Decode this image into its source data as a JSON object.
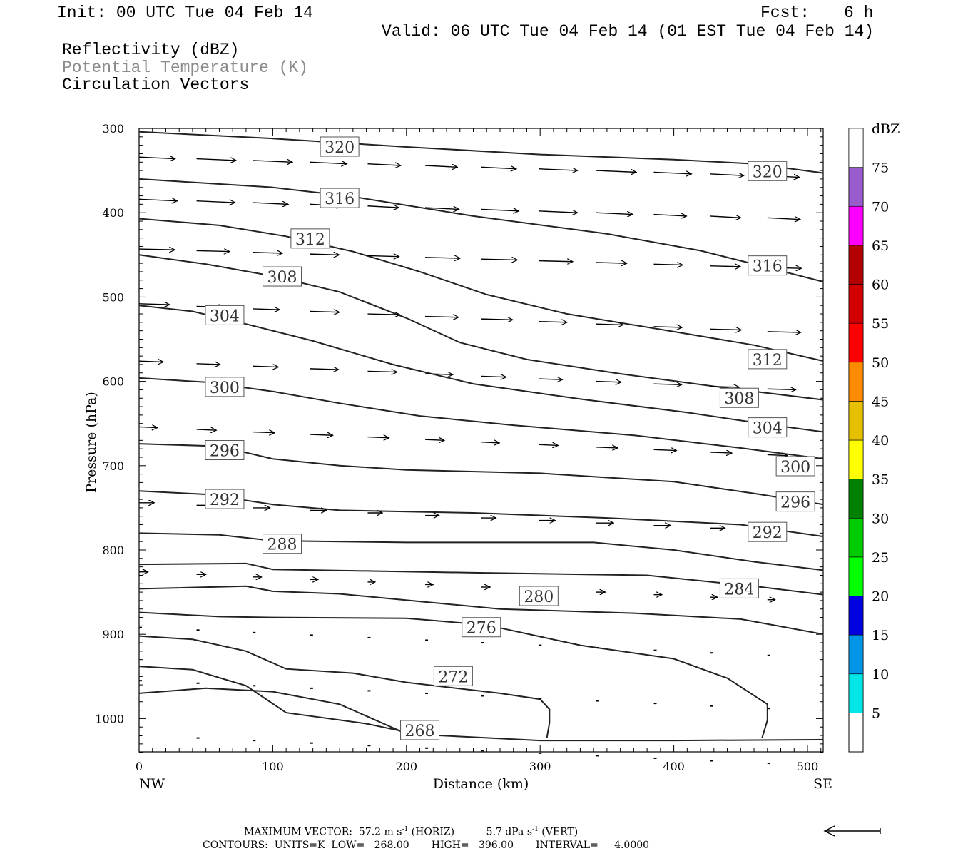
{
  "header": {
    "init": "Init: 00 UTC Tue 04 Feb 14",
    "fcst_label": "Fcst:",
    "fcst_value": "6 h",
    "valid": "Valid: 06 UTC Tue 04 Feb 14 (01 EST Tue 04 Feb 14)",
    "fields": [
      "Reflectivity (dBZ)",
      "Potential Temperature (K)",
      "Circulation Vectors"
    ]
  },
  "chart_data": {
    "type": "contour",
    "xlabel": "Distance (km)",
    "ylabel": "Pressure (hPa)",
    "xlim": [
      0,
      512
    ],
    "ylim": [
      1040,
      300
    ],
    "x_ticks": [
      0,
      100,
      200,
      300,
      400,
      500
    ],
    "y_ticks": [
      300,
      400,
      500,
      600,
      700,
      800,
      900,
      1000
    ],
    "x_end_labels": {
      "left": "NW",
      "right": "SE"
    },
    "colorbar": {
      "title": "dBZ",
      "levels": [
        5,
        10,
        15,
        20,
        25,
        30,
        35,
        40,
        45,
        50,
        55,
        60,
        65,
        70,
        75
      ],
      "colors": [
        "#00e5e5",
        "#0095e6",
        "#0000e0",
        "#00ff00",
        "#00cc00",
        "#008000",
        "#ffff00",
        "#e6bf00",
        "#ff8c00",
        "#ff0000",
        "#d20000",
        "#b30000",
        "#ff00ff",
        "#9a5ccc",
        "#ffffff"
      ]
    },
    "theta_contours": [
      {
        "level": 320,
        "points": [
          [
            0,
            304
          ],
          [
            100,
            312
          ],
          [
            200,
            322
          ],
          [
            300,
            331
          ],
          [
            400,
            337
          ],
          [
            460,
            342
          ],
          [
            512,
            353
          ]
        ]
      },
      {
        "level": 316,
        "points": [
          [
            0,
            360
          ],
          [
            100,
            370
          ],
          [
            160,
            381
          ],
          [
            250,
            404
          ],
          [
            350,
            425
          ],
          [
            420,
            445
          ],
          [
            470,
            465
          ],
          [
            512,
            482
          ]
        ]
      },
      {
        "level": 312,
        "points": [
          [
            0,
            407
          ],
          [
            60,
            415
          ],
          [
            110,
            428
          ],
          [
            160,
            446
          ],
          [
            210,
            470
          ],
          [
            260,
            497
          ],
          [
            320,
            520
          ],
          [
            400,
            541
          ],
          [
            460,
            557
          ],
          [
            512,
            576
          ]
        ]
      },
      {
        "level": 308,
        "points": [
          [
            0,
            450
          ],
          [
            50,
            461
          ],
          [
            100,
            475
          ],
          [
            150,
            494
          ],
          [
            200,
            525
          ],
          [
            240,
            554
          ],
          [
            290,
            574
          ],
          [
            360,
            591
          ],
          [
            440,
            608
          ],
          [
            512,
            622
          ]
        ]
      },
      {
        "level": 304,
        "points": [
          [
            0,
            510
          ],
          [
            40,
            517
          ],
          [
            80,
            532
          ],
          [
            130,
            552
          ],
          [
            190,
            580
          ],
          [
            250,
            603
          ],
          [
            330,
            621
          ],
          [
            410,
            637
          ],
          [
            470,
            651
          ],
          [
            512,
            660
          ]
        ]
      },
      {
        "level": 300,
        "points": [
          [
            0,
            596
          ],
          [
            50,
            601
          ],
          [
            100,
            612
          ],
          [
            150,
            626
          ],
          [
            210,
            641
          ],
          [
            280,
            652
          ],
          [
            370,
            664
          ],
          [
            450,
            679
          ],
          [
            512,
            692
          ]
        ]
      },
      {
        "level": 296,
        "points": [
          [
            0,
            674
          ],
          [
            60,
            677
          ],
          [
            100,
            692
          ],
          [
            150,
            700
          ],
          [
            200,
            705
          ],
          [
            300,
            709
          ],
          [
            400,
            719
          ],
          [
            460,
            733
          ],
          [
            512,
            746
          ]
        ]
      },
      {
        "level": 292,
        "points": [
          [
            0,
            730
          ],
          [
            50,
            734
          ],
          [
            100,
            746
          ],
          [
            150,
            753
          ],
          [
            250,
            756
          ],
          [
            350,
            762
          ],
          [
            450,
            770
          ],
          [
            512,
            784
          ]
        ]
      },
      {
        "level": 288,
        "points": [
          [
            0,
            780
          ],
          [
            60,
            782
          ],
          [
            100,
            789
          ],
          [
            200,
            791
          ],
          [
            340,
            791
          ],
          [
            400,
            800
          ],
          [
            460,
            814
          ],
          [
            512,
            824
          ]
        ]
      },
      {
        "level": 284,
        "points": [
          [
            0,
            817
          ],
          [
            80,
            816
          ],
          [
            100,
            823
          ],
          [
            250,
            827
          ],
          [
            380,
            830
          ],
          [
            460,
            843
          ],
          [
            512,
            853
          ]
        ]
      },
      {
        "level": 280,
        "points": [
          [
            0,
            846
          ],
          [
            80,
            843
          ],
          [
            100,
            849
          ],
          [
            150,
            852
          ],
          [
            210,
            861
          ],
          [
            270,
            870
          ],
          [
            370,
            875
          ],
          [
            450,
            882
          ],
          [
            512,
            900
          ]
        ]
      },
      {
        "level": 276,
        "points": [
          [
            0,
            874
          ],
          [
            60,
            879
          ],
          [
            100,
            880
          ],
          [
            200,
            881
          ],
          [
            260,
            889
          ],
          [
            330,
            913
          ],
          [
            400,
            929
          ],
          [
            440,
            952
          ],
          [
            470,
            983
          ],
          [
            470,
            1002
          ],
          [
            466,
            1023
          ]
        ]
      },
      {
        "level": 272,
        "points": [
          [
            0,
            902
          ],
          [
            40,
            906
          ],
          [
            80,
            920
          ],
          [
            110,
            941
          ],
          [
            160,
            946
          ],
          [
            200,
            957
          ],
          [
            270,
            970
          ],
          [
            300,
            977
          ],
          [
            307,
            989
          ],
          [
            307,
            1005
          ],
          [
            305,
            1023
          ]
        ]
      },
      {
        "level": 268,
        "points": [
          [
            0,
            938
          ],
          [
            40,
            942
          ],
          [
            80,
            961
          ],
          [
            110,
            993
          ],
          [
            170,
            1006
          ],
          [
            200,
            1016
          ],
          [
            220,
            1020
          ]
        ]
      },
      {
        "level": 268,
        "points": [
          [
            0,
            970
          ],
          [
            50,
            964
          ],
          [
            100,
            968
          ],
          [
            150,
            983
          ],
          [
            200,
            1018
          ],
          [
            300,
            1026
          ],
          [
            400,
            1026
          ],
          [
            512,
            1025
          ]
        ]
      }
    ],
    "max_vector": {
      "horiz": "57.2",
      "vert": "5.7"
    }
  },
  "footer": {
    "line1a": "MAXIMUM VECTOR:  57.2 m s",
    "line1b": "(HORIZ)",
    "line1c": "5.7 dPa s",
    "line1d": "(VERT)",
    "line2": "CONTOURS:  UNITS=K  LOW=   268.00       HIGH=   396.00       INTERVAL=     4.0000"
  }
}
